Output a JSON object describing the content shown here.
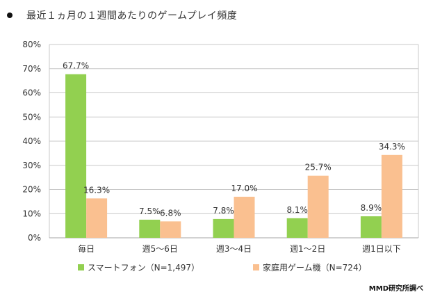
{
  "title": "最近１ヵ月の１週間あたりのゲームプレイ頻度",
  "credit": "MMD研究所調べ",
  "colors": {
    "smartphone": "#92D050",
    "console": "#FAC090",
    "grid": "#C8C8C8"
  },
  "chart_data": {
    "type": "bar",
    "categories": [
      "毎日",
      "週5～6日",
      "週3～4日",
      "週1～2日",
      "週1日以下"
    ],
    "series": [
      {
        "name": "スマートフォン（N=1,497）",
        "values": [
          67.7,
          7.5,
          7.8,
          8.1,
          8.9
        ],
        "labels": [
          "67.7%",
          "7.5%",
          "7.8%",
          "8.1%",
          "8.9%"
        ]
      },
      {
        "name": "家庭用ゲーム機（N=724）",
        "values": [
          16.3,
          6.8,
          17.0,
          25.7,
          34.3
        ],
        "labels": [
          "16.3%",
          "6.8%",
          "17.0%",
          "25.7%",
          "34.3%"
        ]
      }
    ],
    "yticks": [
      "0%",
      "10%",
      "20%",
      "30%",
      "40%",
      "50%",
      "60%",
      "70%",
      "80%"
    ],
    "ylim": [
      0,
      80
    ],
    "grid": true,
    "legend_position": "bottom"
  }
}
